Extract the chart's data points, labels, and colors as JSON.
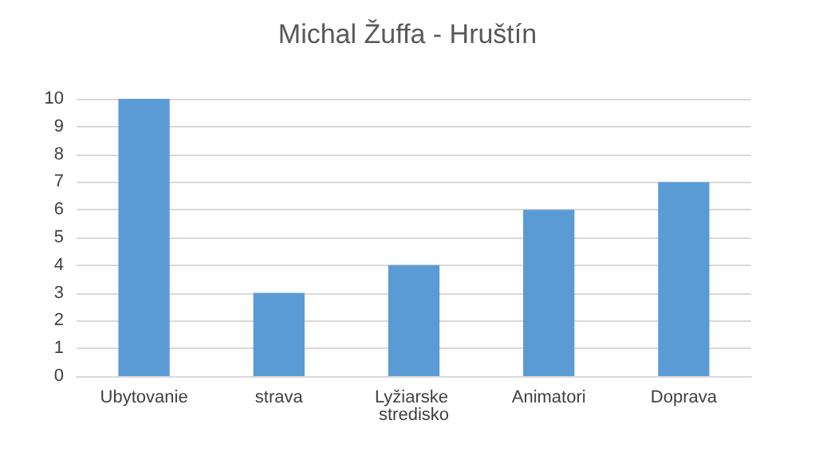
{
  "chart_data": {
    "type": "bar",
    "title": "Michal Žuffa - Hruštín",
    "categories": [
      "Ubytovanie",
      "strava",
      "Lyžiarske stredisko",
      "Animatori",
      "Doprava"
    ],
    "values": [
      10,
      3,
      4,
      6,
      7
    ],
    "color": "#5b9bd5",
    "ylim": [
      0,
      10
    ],
    "yticks": [
      0,
      1,
      2,
      3,
      4,
      5,
      6,
      7,
      8,
      9,
      10
    ],
    "grid": true
  }
}
